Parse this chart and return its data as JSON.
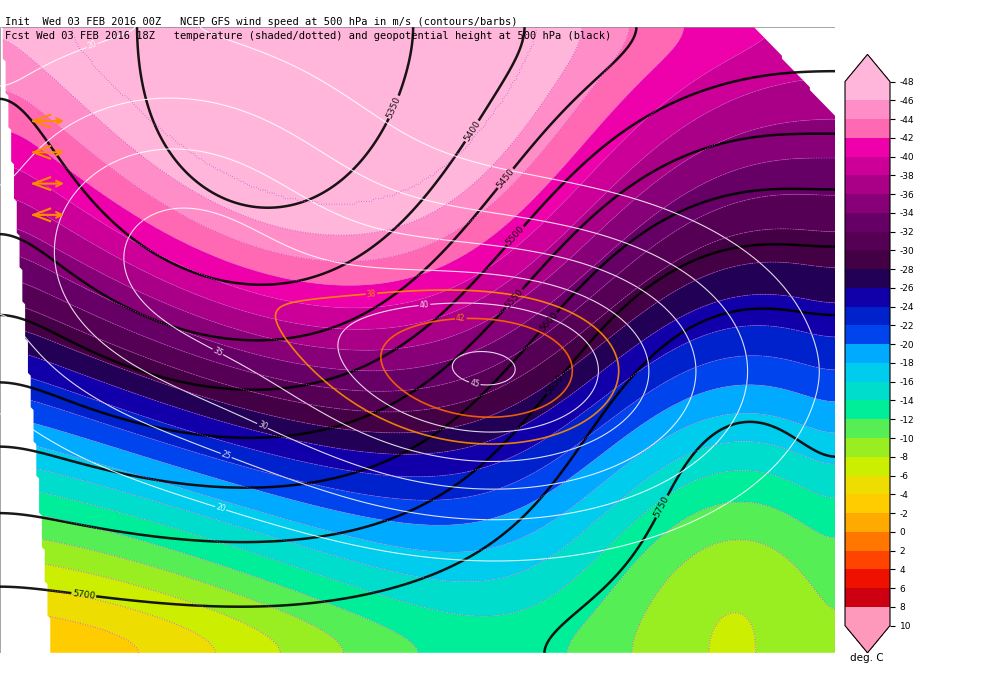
{
  "title_line1": "Init  Wed 03 FEB 2016 00Z   NCEP GFS wind speed at 500 hPa in m/s (contours/barbs)",
  "title_line2": "Fcst Wed 03 FEB 2016 18Z   temperature (shaded/dotted) and geopotential height at 500 hPa (black)",
  "colorbar_levels": [
    10,
    8,
    6,
    4,
    2,
    0,
    -2,
    -4,
    -6,
    -8,
    -10,
    -12,
    -14,
    -16,
    -18,
    -20,
    -22,
    -24,
    -26,
    -28,
    -30,
    -32,
    -34,
    -36,
    -38,
    -40,
    -42,
    -44,
    -46,
    -48
  ],
  "colorbar_colors": [
    "#FFB6C1",
    "#FF69B4",
    "#FF1493",
    "#C71585",
    "#8B008B",
    "#800000",
    "#FF0000",
    "#FF4500",
    "#FF8C00",
    "#FFA500",
    "#FFD700",
    "#ADFF2F",
    "#7CFC00",
    "#32CD32",
    "#00FF7F",
    "#00FA9A",
    "#00CED1",
    "#00BFFF",
    "#1E90FF",
    "#0000FF",
    "#00008B",
    "#4B0082",
    "#6A0DAD",
    "#8B008B",
    "#9400D3",
    "#FF00FF",
    "#FF69B4",
    "#FFB6C1",
    "#FFC0CB"
  ],
  "colorbar_label": "deg. C",
  "background_color": "#FFFFFF",
  "map_bg_color": "#FFFFFF",
  "fig_width": 10.0,
  "fig_height": 6.8
}
